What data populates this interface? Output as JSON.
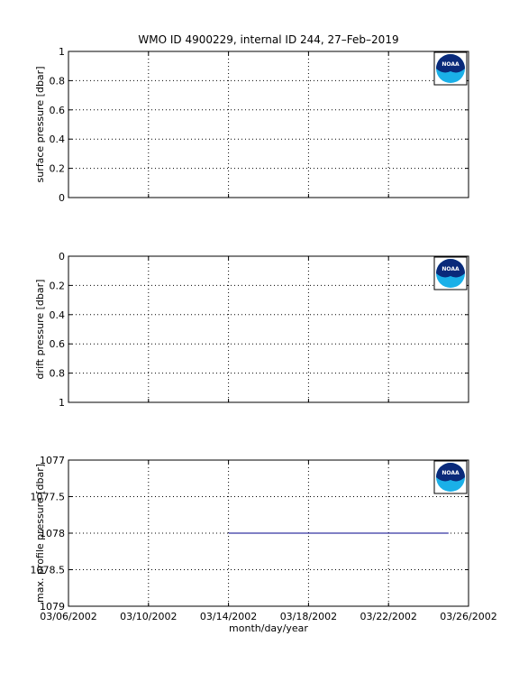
{
  "figure": {
    "title": "WMO ID 4900229, internal ID 244, 27–Feb–2019",
    "xlabel": "month/day/year"
  },
  "logo": {
    "icon": "noaa-logo-icon",
    "text": "NOAA"
  },
  "colors": {
    "series": "#00008b",
    "logo_dark": "#0a2a7a",
    "logo_light": "#1ab0e8"
  },
  "chart_data": [
    {
      "type": "line",
      "ylabel": "surface pressure [dbar]",
      "ylim": [
        0,
        1
      ],
      "y_reversed": false,
      "y_ticks": [
        "0",
        "0.2",
        "0.4",
        "0.6",
        "0.8",
        "1"
      ],
      "y_tick_values": [
        0,
        0.2,
        0.4,
        0.6,
        0.8,
        1
      ],
      "x_ticks": [],
      "grid": true,
      "series": []
    },
    {
      "type": "line",
      "ylabel": "drift pressure [dbar]",
      "ylim": [
        0,
        1
      ],
      "y_reversed": true,
      "y_ticks": [
        "0",
        "0.2",
        "0.4",
        "0.6",
        "0.8",
        "1"
      ],
      "y_tick_values": [
        0,
        0.2,
        0.4,
        0.6,
        0.8,
        1
      ],
      "x_ticks": [],
      "grid": true,
      "series": []
    },
    {
      "type": "line",
      "ylabel": "max. profile pressure [dbar]",
      "ylim": [
        1077,
        1079
      ],
      "y_reversed": true,
      "y_ticks": [
        "1077",
        "1077.5",
        "1078",
        "1078.5",
        "1079"
      ],
      "y_tick_values": [
        1077,
        1077.5,
        1078,
        1078.5,
        1079
      ],
      "x_ticks": [
        "03/06/2002",
        "03/10/2002",
        "03/14/2002",
        "03/18/2002",
        "03/22/2002",
        "03/26/2002"
      ],
      "grid": true,
      "series": [
        {
          "x": [
            "03/14/2002",
            "03/25/2002"
          ],
          "y": [
            1078,
            1078
          ]
        }
      ]
    }
  ],
  "x_axis": {
    "xlim": [
      "03/06/2002",
      "03/26/2002"
    ],
    "tick_dates": [
      "03/06/2002",
      "03/10/2002",
      "03/14/2002",
      "03/18/2002",
      "03/22/2002",
      "03/26/2002"
    ]
  }
}
